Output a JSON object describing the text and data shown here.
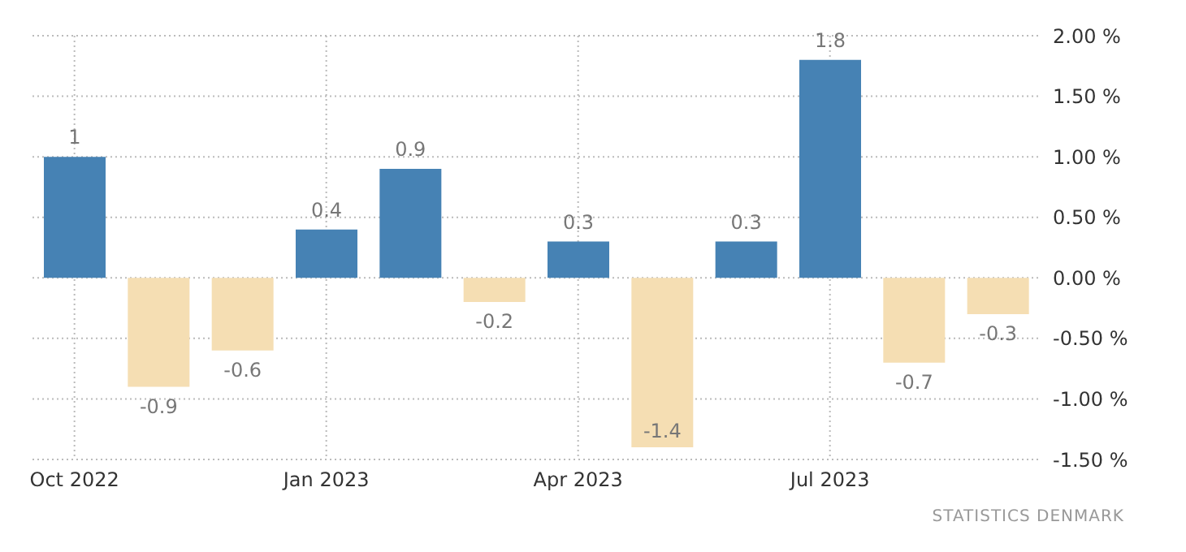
{
  "chart_data": {
    "type": "bar",
    "categories": [
      "Oct 2022",
      null,
      null,
      "Jan 2023",
      null,
      null,
      "Apr 2023",
      null,
      null,
      "Jul 2023",
      null,
      null
    ],
    "values": [
      1,
      -0.9,
      -0.6,
      0.4,
      0.9,
      -0.2,
      0.3,
      -1.4,
      0.3,
      1.8,
      -0.7,
      -0.3
    ],
    "colors": [
      "#4682b4",
      "#f5deb3",
      "#f5deb3",
      "#4682b4",
      "#4682b4",
      "#f5deb3",
      "#4682b4",
      "#f5deb3",
      "#4682b4",
      "#4682b4",
      "#f5deb3",
      "#f5deb3"
    ],
    "ylim": [
      -1.5,
      2.0
    ],
    "yticks": [
      {
        "value": -1.5,
        "label": "-1.50 %"
      },
      {
        "value": -1,
        "label": "-1.00 %"
      },
      {
        "value": -0.5,
        "label": "-0.50 %"
      },
      {
        "value": 0,
        "label": "0.00 %"
      },
      {
        "value": 0.5,
        "label": "0.50 %"
      },
      {
        "value": 1,
        "label": "1.00 %"
      },
      {
        "value": 1.5,
        "label": "1.50 %"
      },
      {
        "value": 2,
        "label": "2.00 %"
      }
    ],
    "grid": true,
    "data_labels": true,
    "annotations": [
      "STATISTICS DENMARK"
    ]
  }
}
